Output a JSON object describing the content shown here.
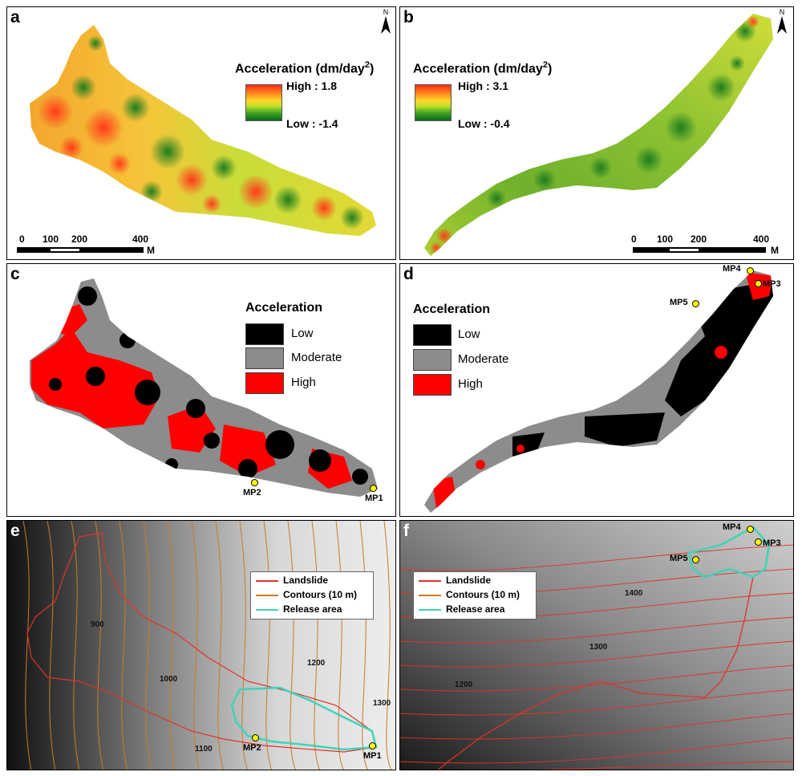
{
  "panels": {
    "a": {
      "label": "a",
      "legend_title": "Acceleration (dm/day",
      "legend_sup": "2",
      "legend_close": ")",
      "high": "High : 1.8",
      "low": "Low : -1.4",
      "scale": [
        "0",
        "100",
        "200",
        "400"
      ],
      "scale_unit": "M",
      "north": "N"
    },
    "b": {
      "label": "b",
      "legend_title": "Acceleration (dm/day",
      "legend_sup": "2",
      "legend_close": ")",
      "high": "High : 3.1",
      "low": "Low : -0.4",
      "scale": [
        "0",
        "100",
        "200",
        "400"
      ],
      "scale_unit": "M",
      "north": "N"
    },
    "c": {
      "label": "c",
      "legend_title": "Acceleration",
      "classes": [
        "Low",
        "Moderate",
        "High"
      ],
      "points": [
        "MP2",
        "MP1"
      ]
    },
    "d": {
      "label": "d",
      "legend_title": "Acceleration",
      "classes": [
        "Low",
        "Moderate",
        "High"
      ],
      "points": [
        "MP4",
        "MP3",
        "MP5"
      ]
    },
    "e": {
      "label": "e",
      "legend": [
        "Landslide",
        "Contours (10 m)",
        "Release area"
      ],
      "contour_labels": [
        "900",
        "1000",
        "1100",
        "1200",
        "1300"
      ],
      "points": [
        "MP2",
        "MP1"
      ]
    },
    "f": {
      "label": "f",
      "legend": [
        "Landslide",
        "Contours (10 m)",
        "Release area"
      ],
      "contour_labels": [
        "1400",
        "1300",
        "1200"
      ],
      "points": [
        "MP4",
        "MP3",
        "MP5"
      ]
    }
  },
  "colors": {
    "low": "#000000",
    "moderate": "#8c8c8c",
    "high": "#ff0000",
    "landslide": "#e0322a",
    "contour": "#c87a2a",
    "release": "#3fd3b8"
  }
}
